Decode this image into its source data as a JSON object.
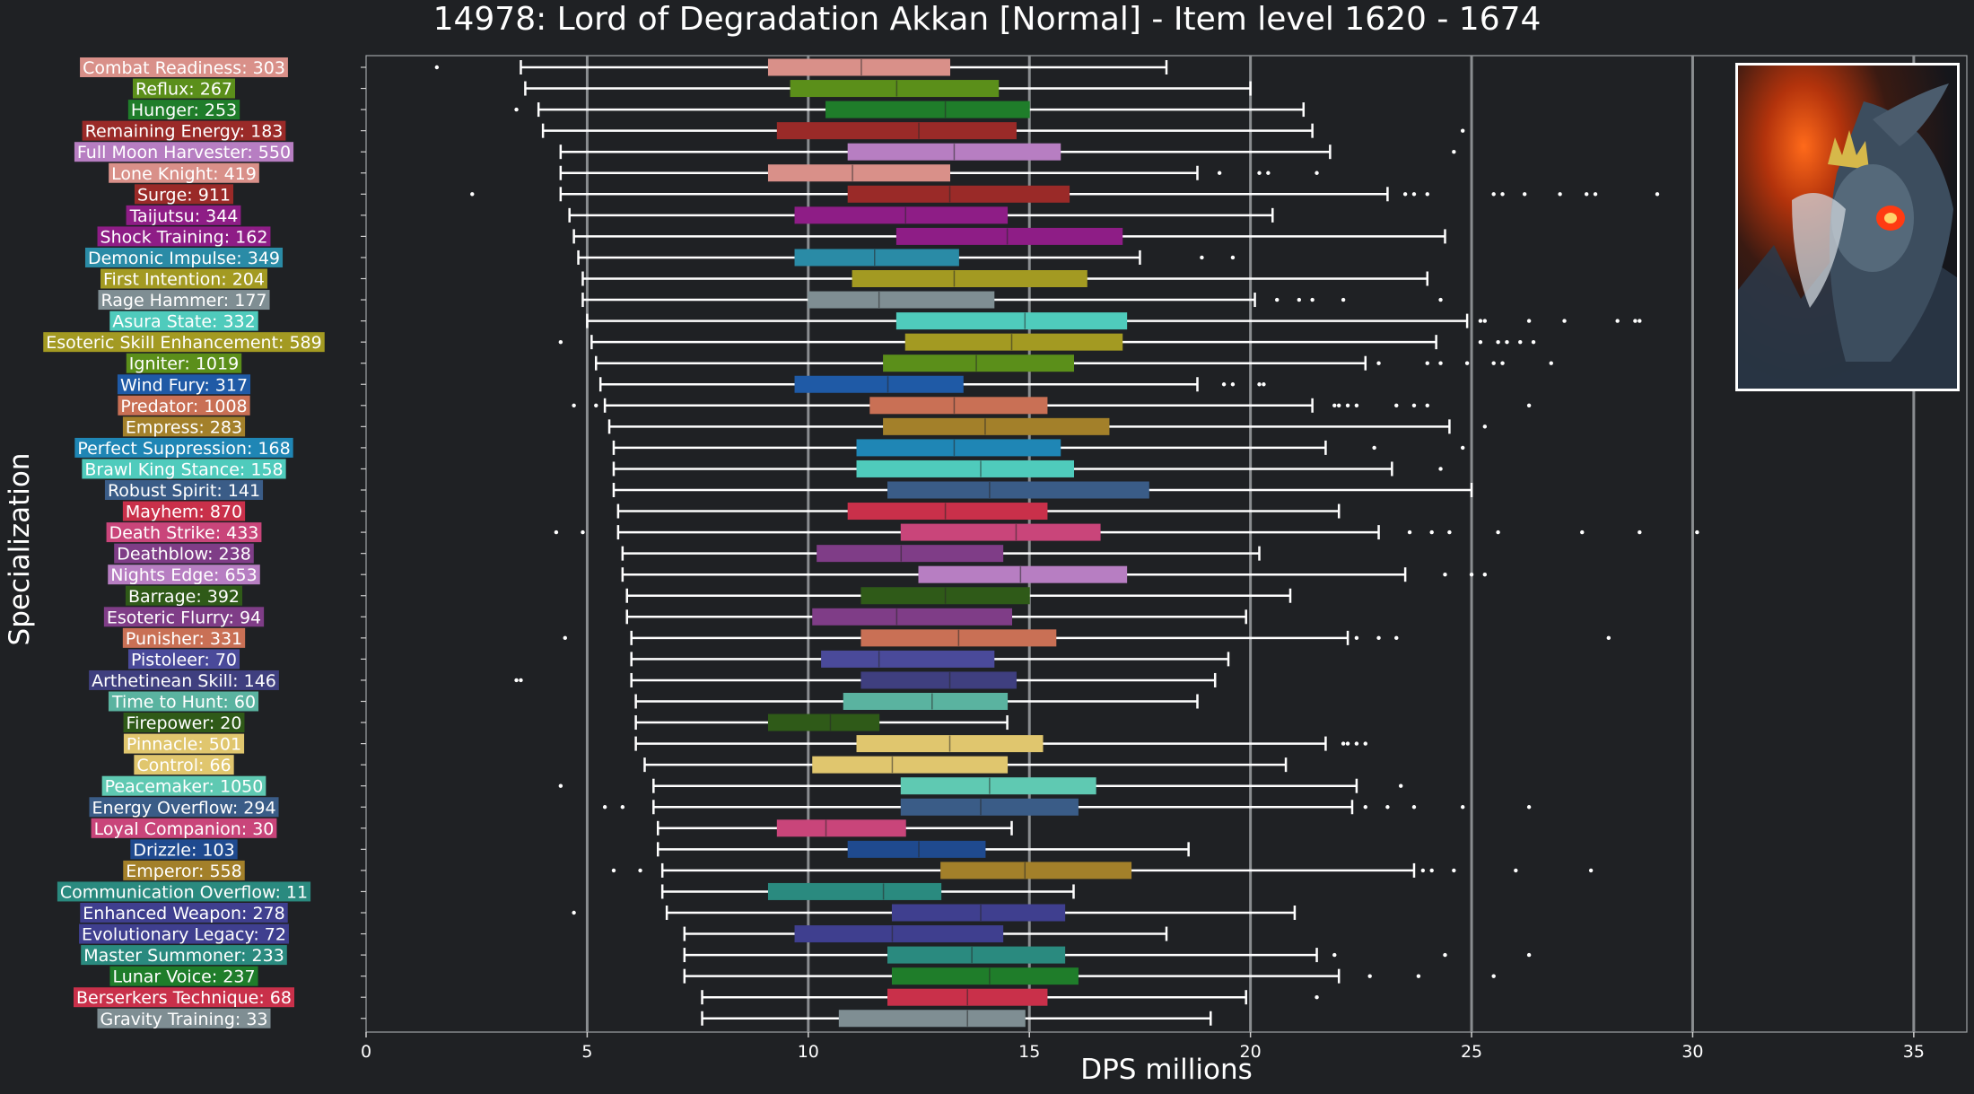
{
  "chart_data": {
    "type": "box",
    "title": "14978: Lord of Degradation Akkan [Normal] - Item level 1620 - 1674",
    "xlabel": "DPS millions",
    "ylabel": "Specialization",
    "xlim": [
      0,
      36.2
    ],
    "xticks": [
      0,
      5,
      10,
      15,
      20,
      25,
      30,
      35
    ],
    "grid": "vertical",
    "background": "#1f2124",
    "categories": [
      {
        "label": "Combat Readiness: 303",
        "color": "#d99089",
        "whislo": 3.5,
        "q1": 9.1,
        "med": 11.2,
        "q3": 13.2,
        "whishi": 18.1,
        "fliers": [
          1.6
        ]
      },
      {
        "label": "Reflux: 267",
        "color": "#5b8f1a",
        "whislo": 3.6,
        "q1": 9.6,
        "med": 12.0,
        "q3": 14.3,
        "whishi": 20.0,
        "fliers": []
      },
      {
        "label": "Hunger: 253",
        "color": "#1f7d2a",
        "whislo": 3.9,
        "q1": 10.4,
        "med": 13.1,
        "q3": 15.0,
        "whishi": 21.2,
        "fliers": [
          3.4
        ]
      },
      {
        "label": "Remaining Energy: 183",
        "color": "#9a2a28",
        "whislo": 4.0,
        "q1": 9.3,
        "med": 12.5,
        "q3": 14.7,
        "whishi": 21.4,
        "fliers": [
          24.8
        ]
      },
      {
        "label": "Full Moon Harvester: 550",
        "color": "#b77ec2",
        "whislo": 4.4,
        "q1": 10.9,
        "med": 13.3,
        "q3": 15.7,
        "whishi": 21.8,
        "fliers": [
          24.6
        ]
      },
      {
        "label": "Lone Knight: 419",
        "color": "#d99089",
        "whislo": 4.4,
        "q1": 9.1,
        "med": 11.0,
        "q3": 13.2,
        "whishi": 18.8,
        "fliers": [
          19.3,
          20.2,
          20.4,
          21.5
        ]
      },
      {
        "label": "Surge: 911",
        "color": "#9a2a28",
        "whislo": 4.4,
        "q1": 10.9,
        "med": 13.2,
        "q3": 15.9,
        "whishi": 23.1,
        "fliers": [
          2.4,
          23.5,
          23.7,
          24.0,
          25.5,
          25.7,
          26.2,
          27.0,
          27.6,
          27.8,
          29.2
        ]
      },
      {
        "label": "Taijutsu: 344",
        "color": "#8e1d86",
        "whislo": 4.6,
        "q1": 9.7,
        "med": 12.2,
        "q3": 14.5,
        "whishi": 20.5,
        "fliers": []
      },
      {
        "label": "Shock Training: 162",
        "color": "#8e1d86",
        "whislo": 4.7,
        "q1": 12.0,
        "med": 14.5,
        "q3": 17.1,
        "whishi": 24.4,
        "fliers": []
      },
      {
        "label": "Demonic Impulse: 349",
        "color": "#2a8ba6",
        "whislo": 4.8,
        "q1": 9.7,
        "med": 11.5,
        "q3": 13.4,
        "whishi": 17.5,
        "fliers": [
          18.9,
          19.6
        ]
      },
      {
        "label": "First Intention: 204",
        "color": "#a39a22",
        "whislo": 4.9,
        "q1": 11.0,
        "med": 13.3,
        "q3": 16.3,
        "whishi": 24.0,
        "fliers": []
      },
      {
        "label": "Rage Hammer: 177",
        "color": "#7f8e93",
        "whislo": 4.9,
        "q1": 10.0,
        "med": 11.6,
        "q3": 14.2,
        "whishi": 20.1,
        "fliers": [
          20.6,
          21.1,
          21.4,
          22.1,
          24.3
        ]
      },
      {
        "label": "Asura State: 332",
        "color": "#4fcbbc",
        "whislo": 5.0,
        "q1": 12.0,
        "med": 14.9,
        "q3": 17.2,
        "whishi": 24.9,
        "fliers": [
          25.2,
          25.3,
          26.3,
          27.1,
          28.3,
          28.7,
          28.8
        ]
      },
      {
        "label": "Esoteric Skill Enhancement: 589",
        "color": "#a39a22",
        "whislo": 5.1,
        "q1": 12.2,
        "med": 14.6,
        "q3": 17.1,
        "whishi": 24.2,
        "fliers": [
          4.4,
          25.2,
          25.6,
          25.8,
          26.1,
          26.4
        ]
      },
      {
        "label": "Igniter: 1019",
        "color": "#5b8f1a",
        "whislo": 5.2,
        "q1": 11.7,
        "med": 13.8,
        "q3": 16.0,
        "whishi": 22.6,
        "fliers": [
          22.9,
          24.0,
          24.3,
          24.9,
          25.5,
          25.7,
          26.8
        ]
      },
      {
        "label": "Wind Fury: 317",
        "color": "#1f5aa6",
        "whislo": 5.3,
        "q1": 9.7,
        "med": 11.8,
        "q3": 13.5,
        "whishi": 18.8,
        "fliers": [
          19.4,
          19.6,
          20.2,
          20.3
        ]
      },
      {
        "label": "Predator: 1008",
        "color": "#c97055",
        "whislo": 5.4,
        "q1": 11.4,
        "med": 13.3,
        "q3": 15.4,
        "whishi": 21.4,
        "fliers": [
          4.7,
          5.2,
          21.9,
          22.0,
          22.2,
          22.4,
          23.3,
          23.7,
          24.0,
          26.3
        ]
      },
      {
        "label": "Empress: 283",
        "color": "#a3802a",
        "whislo": 5.5,
        "q1": 11.7,
        "med": 14.0,
        "q3": 16.8,
        "whishi": 24.5,
        "fliers": [
          25.3
        ]
      },
      {
        "label": "Perfect Suppression: 168",
        "color": "#1f86b5",
        "whislo": 5.6,
        "q1": 11.1,
        "med": 13.3,
        "q3": 15.7,
        "whishi": 21.7,
        "fliers": [
          22.8,
          24.8
        ]
      },
      {
        "label": "Brawl King Stance: 158",
        "color": "#4fcbbc",
        "whislo": 5.6,
        "q1": 11.1,
        "med": 13.9,
        "q3": 16.0,
        "whishi": 23.2,
        "fliers": [
          24.3
        ]
      },
      {
        "label": "Robust Spirit: 141",
        "color": "#3a5c87",
        "whislo": 5.6,
        "q1": 11.8,
        "med": 14.1,
        "q3": 17.7,
        "whishi": 25.0,
        "fliers": []
      },
      {
        "label": "Mayhem: 870",
        "color": "#c9304a",
        "whislo": 5.7,
        "q1": 10.9,
        "med": 13.1,
        "q3": 15.4,
        "whishi": 22.0,
        "fliers": []
      },
      {
        "label": "Death Strike: 433",
        "color": "#c9457a",
        "whislo": 5.7,
        "q1": 12.1,
        "med": 14.7,
        "q3": 16.6,
        "whishi": 22.9,
        "fliers": [
          4.3,
          4.9,
          23.6,
          24.1,
          24.5,
          25.6,
          27.5,
          28.8,
          30.1
        ]
      },
      {
        "label": "Deathblow: 238",
        "color": "#7f3d87",
        "whislo": 5.8,
        "q1": 10.2,
        "med": 12.1,
        "q3": 14.4,
        "whishi": 20.2,
        "fliers": []
      },
      {
        "label": "Nights Edge: 653",
        "color": "#b77ec2",
        "whislo": 5.8,
        "q1": 12.5,
        "med": 14.8,
        "q3": 17.2,
        "whishi": 23.5,
        "fliers": [
          24.4,
          25.0,
          25.3
        ]
      },
      {
        "label": "Barrage: 392",
        "color": "#2f5a18",
        "whislo": 5.9,
        "q1": 11.2,
        "med": 13.1,
        "q3": 15.0,
        "whishi": 20.9,
        "fliers": []
      },
      {
        "label": "Esoteric Flurry: 94",
        "color": "#7f3d87",
        "whislo": 5.9,
        "q1": 10.1,
        "med": 12.0,
        "q3": 14.6,
        "whishi": 19.9,
        "fliers": []
      },
      {
        "label": "Punisher: 331",
        "color": "#c97055",
        "whislo": 6.0,
        "q1": 11.2,
        "med": 13.4,
        "q3": 15.6,
        "whishi": 22.2,
        "fliers": [
          4.5,
          22.4,
          22.9,
          23.3,
          28.1
        ]
      },
      {
        "label": "Pistoleer: 70",
        "color": "#4a4a9a",
        "whislo": 6.0,
        "q1": 10.3,
        "med": 11.6,
        "q3": 14.2,
        "whishi": 19.5,
        "fliers": []
      },
      {
        "label": "Arthetinean Skill: 146",
        "color": "#3f3f7f",
        "whislo": 6.0,
        "q1": 11.2,
        "med": 13.2,
        "q3": 14.7,
        "whishi": 19.2,
        "fliers": [
          3.4,
          3.5
        ]
      },
      {
        "label": "Time to Hunt: 60",
        "color": "#5ab3a0",
        "whislo": 6.1,
        "q1": 10.8,
        "med": 12.8,
        "q3": 14.5,
        "whishi": 18.8,
        "fliers": []
      },
      {
        "label": "Firepower: 20",
        "color": "#2f5a18",
        "whislo": 6.1,
        "q1": 9.1,
        "med": 10.5,
        "q3": 11.6,
        "whishi": 14.5,
        "fliers": []
      },
      {
        "label": "Pinnacle: 501",
        "color": "#e0c66e",
        "whislo": 6.1,
        "q1": 11.1,
        "med": 13.2,
        "q3": 15.3,
        "whishi": 21.7,
        "fliers": [
          22.1,
          22.2,
          22.4,
          22.6
        ]
      },
      {
        "label": "Control: 66",
        "color": "#e0c66e",
        "whislo": 6.3,
        "q1": 10.1,
        "med": 11.9,
        "q3": 14.5,
        "whishi": 20.8,
        "fliers": []
      },
      {
        "label": "Peacemaker: 1050",
        "color": "#5fc9b2",
        "whislo": 6.5,
        "q1": 12.1,
        "med": 14.1,
        "q3": 16.5,
        "whishi": 22.4,
        "fliers": [
          4.4,
          23.4
        ]
      },
      {
        "label": "Energy Overflow: 294",
        "color": "#3a5c87",
        "whislo": 6.5,
        "q1": 12.1,
        "med": 13.9,
        "q3": 16.1,
        "whishi": 22.3,
        "fliers": [
          5.4,
          5.8,
          22.6,
          23.1,
          23.7,
          24.8,
          26.3
        ]
      },
      {
        "label": "Loyal Companion: 30",
        "color": "#c9457a",
        "whislo": 6.6,
        "q1": 9.3,
        "med": 10.4,
        "q3": 12.2,
        "whishi": 14.6,
        "fliers": []
      },
      {
        "label": "Drizzle: 103",
        "color": "#1f4a8f",
        "whislo": 6.6,
        "q1": 10.9,
        "med": 12.5,
        "q3": 14.0,
        "whishi": 18.6,
        "fliers": []
      },
      {
        "label": "Emperor: 558",
        "color": "#a3802a",
        "whislo": 6.7,
        "q1": 13.0,
        "med": 14.9,
        "q3": 17.3,
        "whishi": 23.7,
        "fliers": [
          5.6,
          6.2,
          23.9,
          24.1,
          24.6,
          26.0,
          27.7
        ]
      },
      {
        "label": "Communication Overflow: 11",
        "color": "#2a8a7f",
        "whislo": 6.7,
        "q1": 9.1,
        "med": 11.7,
        "q3": 13.0,
        "whishi": 16.0,
        "fliers": []
      },
      {
        "label": "Enhanced Weapon: 278",
        "color": "#3f3f8f",
        "whislo": 6.8,
        "q1": 11.9,
        "med": 13.9,
        "q3": 15.8,
        "whishi": 21.0,
        "fliers": [
          4.7
        ]
      },
      {
        "label": "Evolutionary Legacy: 72",
        "color": "#3f3f8f",
        "whislo": 7.2,
        "q1": 9.7,
        "med": 11.9,
        "q3": 14.4,
        "whishi": 18.1,
        "fliers": []
      },
      {
        "label": "Master Summoner: 233",
        "color": "#2a8a7f",
        "whislo": 7.2,
        "q1": 11.8,
        "med": 13.7,
        "q3": 15.8,
        "whishi": 21.5,
        "fliers": [
          21.9,
          24.4,
          26.3
        ]
      },
      {
        "label": "Lunar Voice: 237",
        "color": "#1f7d2a",
        "whislo": 7.2,
        "q1": 11.9,
        "med": 14.1,
        "q3": 16.1,
        "whishi": 22.0,
        "fliers": [
          22.7,
          23.8,
          25.5
        ]
      },
      {
        "label": "Berserkers Technique: 68",
        "color": "#c9304a",
        "whislo": 7.6,
        "q1": 11.8,
        "med": 13.6,
        "q3": 15.4,
        "whishi": 19.9,
        "fliers": [
          21.5
        ]
      },
      {
        "label": "Gravity Training: 33",
        "color": "#7f8e93",
        "whislo": 7.6,
        "q1": 10.7,
        "med": 13.6,
        "q3": 14.9,
        "whishi": 19.1,
        "fliers": []
      }
    ]
  }
}
